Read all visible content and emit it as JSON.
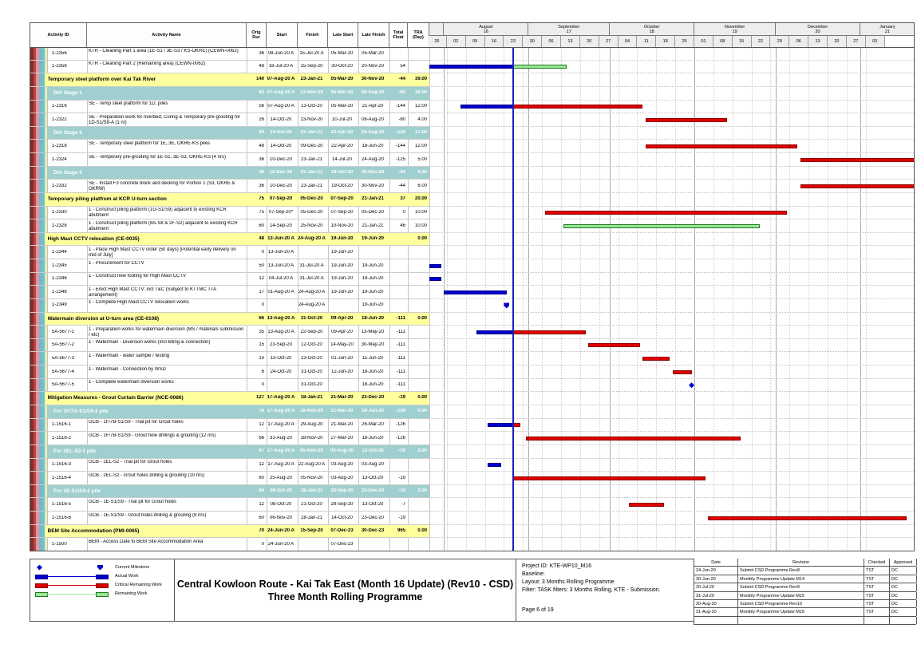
{
  "chart_data": {
    "type": "gantt",
    "columns_display": [
      "Activity ID",
      "Activity Name",
      "Orig\nDur",
      "Start",
      "Finish",
      "Late Start",
      "Late Finish",
      "Total\nFloat",
      "TRA\n(Day)"
    ],
    "timeline": {
      "start": "2020-07-26",
      "data_date": "2020-08-26",
      "weeks": [
        "26",
        "02",
        "09",
        "16",
        "23",
        "30",
        "06",
        "13",
        "20",
        "27",
        "04",
        "11",
        "18",
        "25",
        "01",
        "08",
        "15",
        "22",
        "29",
        "06",
        "13",
        "20",
        "27",
        "03"
      ],
      "months": [
        {
          "label": "",
          "num": "",
          "from": "2020-07-26",
          "to": "2020-08-01"
        },
        {
          "label": "August",
          "num": "16",
          "from": "2020-08-01",
          "to": "2020-09-01"
        },
        {
          "label": "September",
          "num": "17",
          "from": "2020-09-01",
          "to": "2020-10-01"
        },
        {
          "label": "October",
          "num": "18",
          "from": "2020-10-01",
          "to": "2020-11-01"
        },
        {
          "label": "November",
          "num": "19",
          "from": "2020-11-01",
          "to": "2020-12-01"
        },
        {
          "label": "December",
          "num": "20",
          "from": "2020-12-01",
          "to": "2021-01-01"
        },
        {
          "label": "January",
          "num": "21",
          "from": "2021-01-01",
          "to": "2021-01-24"
        }
      ]
    },
    "rows": [
      {
        "type": "act",
        "id": "1-2356",
        "name": "KTR - Cleaning Part 1 area (1E-S1 / 3E-S3 / KS-OKRE) (CEWN-0062)",
        "od": "36",
        "st": "08-Jun-20 A",
        "fn": "15-Jul-20 A",
        "ls": "05-Mar-20",
        "lf": "05-Mar-20",
        "tf": "",
        "tra": "",
        "bars": []
      },
      {
        "type": "act",
        "id": "1-2358",
        "name": "KTR - Cleaning Part 2 (Remaining area) (CEWN-0062)",
        "od": "48",
        "st": "16-Jul-20 A",
        "fn": "15-Sep-20",
        "ls": "30-Oct-20",
        "lf": "20-Nov-20",
        "tf": "54",
        "tra": "",
        "bars": [
          [
            "actual",
            "2020-07-26",
            "2020-08-26"
          ],
          [
            "remaining",
            "2020-08-26",
            "2020-09-15"
          ]
        ]
      },
      {
        "type": "band-y",
        "name": "Temporary steel platform over Kai Tak River",
        "od": "140",
        "st": "07-Aug-20 A",
        "fn": "23-Jan-21",
        "ls": "05-Mar-20",
        "lf": "30-Nov-20",
        "tf": "-44",
        "tra": "39.00"
      },
      {
        "type": "band-t",
        "name": "DIA Stage 1",
        "od": "82",
        "st": "07-Aug-20 A",
        "fn": "13-Nov-20",
        "ls": "05-Mar-20",
        "lf": "08-Aug-20",
        "tf": "-80",
        "tra": "16.00"
      },
      {
        "type": "act",
        "id": "1-2316",
        "name": "SE - Temp steel platform for 1D, piles",
        "od": "56",
        "st": "07-Aug-20 A",
        "fn": "13-Oct-20",
        "ls": "05-Mar-20",
        "lf": "21-Apr-20",
        "tf": "-144",
        "tra": "12.00",
        "bars": [
          [
            "actual",
            "2020-08-07",
            "2020-08-26"
          ],
          [
            "critical",
            "2020-08-26",
            "2020-10-13"
          ]
        ]
      },
      {
        "type": "act",
        "id": "1-2322",
        "name": "SE - Preparation work for riverbed; Coring & Temporary pre-grouting for 1D-S1/S9-A (1 nr)",
        "od": "26",
        "st": "14-Oct-20",
        "fn": "13-Nov-20",
        "ls": "10-Jul-20",
        "lf": "08-Aug-20",
        "tf": "-80",
        "tra": "4.00",
        "bars": [
          [
            "critical",
            "2020-10-14",
            "2020-11-13"
          ]
        ]
      },
      {
        "type": "band-t",
        "name": "DIA Stage 2",
        "od": "84",
        "st": "14-Oct-20",
        "fn": "23-Jan-21",
        "ls": "22-Apr-20",
        "lf": "24-Aug-20",
        "tf": "-125",
        "tra": "17.00"
      },
      {
        "type": "act",
        "id": "1-2318",
        "name": "SE - Temporary steel platform for 1E, 3E, OKRE-KS piles",
        "od": "48",
        "st": "14-Oct-20",
        "fn": "09-Dec-20",
        "ls": "22-Apr-20",
        "lf": "18-Jun-20",
        "tf": "-144",
        "tra": "12.00",
        "bars": [
          [
            "critical",
            "2020-10-14",
            "2020-12-09"
          ]
        ]
      },
      {
        "type": "act",
        "id": "1-2324",
        "name": "SE - Temporary pre-grouting for 1E-S1, 3E-S3, OKRE-KS (4 nrs)",
        "od": "36",
        "st": "10-Dec-20",
        "fn": "23-Jan-21",
        "ls": "14-Jul-20",
        "lf": "24-Aug-20",
        "tf": "-125",
        "tra": "5.00",
        "bars": [
          [
            "critical",
            "2020-12-10",
            "2021-01-23"
          ]
        ]
      },
      {
        "type": "band-t",
        "name": "DIA Stage 3",
        "od": "36",
        "st": "10-Dec-20",
        "fn": "23-Jan-21",
        "ls": "19-Oct-20",
        "lf": "30-Nov-20",
        "tf": "-44",
        "tra": "6.00"
      },
      {
        "type": "act",
        "id": "1-2332",
        "name": "SE - Install F3 concrete block and decking for Portion 1 (S3, OKRE & OKRW)",
        "od": "36",
        "st": "10-Dec-20",
        "fn": "23-Jan-21",
        "ls": "19-Oct-20",
        "lf": "30-Nov-20",
        "tf": "-44",
        "tra": "6.00",
        "bars": [
          [
            "critical",
            "2020-12-10",
            "2021-01-23"
          ]
        ]
      },
      {
        "type": "band-y",
        "name": "Temporary piling platfrom at KCR U-turn section",
        "od": "75",
        "st": "07-Sep-20",
        "fn": "05-Dec-20",
        "ls": "07-Sep-20",
        "lf": "21-Jan-21",
        "tf": "37",
        "tra": "20.00"
      },
      {
        "type": "act",
        "id": "1-2330",
        "name": "1 - Construct piling platform (1G-S1/S9) adjacent to existing KCR abutment",
        "od": "75",
        "st": "07-Sep-20*",
        "fn": "05-Dec-20",
        "ls": "07-Sep-20",
        "lf": "05-Dec-20",
        "tf": "0",
        "tra": "10.00",
        "bars": [
          [
            "critical",
            "2020-09-07",
            "2020-12-05"
          ]
        ]
      },
      {
        "type": "act",
        "id": "1-2328",
        "name": "1 - Construct piling platform (8A-S8 & 2F-S2) adjacent to existing KCR abutment",
        "od": "60",
        "st": "14-Sep-20",
        "fn": "25-Nov-20",
        "ls": "10-Nov-20",
        "lf": "21-Jan-21",
        "tf": "46",
        "tra": "10.00",
        "bars": [
          [
            "remaining",
            "2020-09-14",
            "2020-11-25"
          ]
        ]
      },
      {
        "type": "band-y",
        "name": "High Mast CCTV relocation (CE-0035)",
        "od": "48",
        "st": "13-Jun-20 A",
        "fn": "24-Aug-20 A",
        "ls": "19-Jun-20",
        "lf": "19-Jun-20",
        "tf": "",
        "tra": "0.00"
      },
      {
        "type": "act",
        "id": "1-2344",
        "name": "1 - Place High Mast CCTV order (50 days) [Potential early delivery on mid of July]",
        "od": "0",
        "st": "13-Jun-20 A",
        "fn": "",
        "ls": "19-Jun-20",
        "lf": "",
        "tf": "",
        "tra": "",
        "bars": []
      },
      {
        "type": "act",
        "id": "1-2345",
        "name": "1 - Procurement for CCTV",
        "od": "50",
        "st": "13-Jun-20 A",
        "fn": "31-Jul-20 A",
        "ls": "19-Jun-20",
        "lf": "19-Jun-20",
        "tf": "",
        "tra": "",
        "bars": [
          [
            "actual",
            "2020-07-26",
            "2020-07-31"
          ]
        ]
      },
      {
        "type": "act",
        "id": "1-2346",
        "name": "1 - Construct new footing for High Mast CCTV",
        "od": "12",
        "st": "04-Jul-20 A",
        "fn": "31-Jul-20 A",
        "ls": "19-Jun-20",
        "lf": "19-Jun-20",
        "tf": "",
        "tra": "",
        "bars": [
          [
            "actual",
            "2020-07-26",
            "2020-07-31"
          ]
        ]
      },
      {
        "type": "act",
        "id": "1-2348",
        "name": "1 - Erect High Mast CCTV; incl T&C (Subject to KTTMC TTA arrangement)",
        "od": "17",
        "st": "01-Aug-20 A",
        "fn": "24-Aug-20 A",
        "ls": "19-Jun-20",
        "lf": "19-Jun-20",
        "tf": "",
        "tra": "",
        "bars": [
          [
            "actual",
            "2020-08-01",
            "2020-08-24"
          ]
        ]
      },
      {
        "type": "act",
        "id": "1-2349",
        "name": "1 - Complete High Mast CCTV relocation works",
        "od": "0",
        "st": "",
        "fn": "24-Aug-20 A",
        "ls": "",
        "lf": "19-Jun-20",
        "tf": "",
        "tra": "",
        "bars": [],
        "ms": [
          [
            "flag",
            "2020-08-24"
          ]
        ]
      },
      {
        "type": "band-y",
        "name": "Watermain diversion at U-turn area (CE-0108)",
        "od": "66",
        "st": "13-Aug-20 A",
        "fn": "31-Oct-20",
        "ls": "09-Apr-20",
        "lf": "18-Jun-20",
        "tf": "-111",
        "tra": "0.00"
      },
      {
        "type": "act",
        "id": "5A-5677-1",
        "name": "1 - Preparation works for watermain diversion (MS / materials submission / etc)",
        "od": "35",
        "st": "13-Aug-20 A",
        "fn": "22-Sep-20",
        "ls": "09-Apr-20",
        "lf": "13-May-20",
        "tf": "-111",
        "tra": "",
        "bars": [
          [
            "actual",
            "2020-08-13",
            "2020-08-26"
          ],
          [
            "critical",
            "2020-08-26",
            "2020-09-22"
          ]
        ]
      },
      {
        "type": "act",
        "id": "5A-5677-2",
        "name": "1 - Watermain - Diversion works (incl teting & connection)",
        "od": "15",
        "st": "23-Sep-20",
        "fn": "12-Oct-20",
        "ls": "14-May-20",
        "lf": "30-May-20",
        "tf": "-111",
        "tra": "",
        "bars": [
          [
            "critical",
            "2020-09-23",
            "2020-10-12"
          ]
        ]
      },
      {
        "type": "act",
        "id": "5A-5677-3",
        "name": "1 - Watermain - water sample / testing",
        "od": "10",
        "st": "13-Oct-20",
        "fn": "23-Oct-20",
        "ls": "01-Jun-20",
        "lf": "11-Jun-20",
        "tf": "-111",
        "tra": "",
        "bars": [
          [
            "critical",
            "2020-10-13",
            "2020-10-23"
          ]
        ]
      },
      {
        "type": "act",
        "id": "5A-5677-4",
        "name": "1 - Watermain - Connection by WSD",
        "od": "6",
        "st": "24-Oct-20",
        "fn": "31-Oct-20",
        "ls": "12-Jun-20",
        "lf": "18-Jun-20",
        "tf": "-111",
        "tra": "",
        "bars": [
          [
            "critical",
            "2020-10-24",
            "2020-10-31"
          ]
        ]
      },
      {
        "type": "act",
        "id": "5A-5677-5",
        "name": "1 - Complete watermain diversion works",
        "od": "0",
        "st": "",
        "fn": "31-Oct-20",
        "ls": "",
        "lf": "18-Jun-20",
        "tf": "-111",
        "tra": "",
        "bars": [],
        "ms": [
          [
            "diamond",
            "2020-10-31"
          ]
        ]
      },
      {
        "type": "band-y",
        "name": "Mitigation Measures - Grout Curtain Barrier (NCE-0086)",
        "od": "127",
        "st": "17-Aug-20 A",
        "fn": "18-Jan-21",
        "ls": "21-Mar-20",
        "lf": "23-Dec-20",
        "tf": "-19",
        "tra": "0.00"
      },
      {
        "type": "band-t",
        "name": "For 1F/7A-S1/S9-2 pile",
        "od": "78",
        "st": "17-Aug-20 A",
        "fn": "18-Nov-20",
        "ls": "21-Mar-20",
        "lf": "18-Jun-20",
        "tf": "-126",
        "tra": "0.00"
      },
      {
        "type": "act",
        "id": "1-1516-1",
        "name": "GCB - 1F/7B-S1/S9 - Trial pit for Grout holes",
        "od": "12",
        "st": "17-Aug-20 A",
        "fn": "29-Aug-20",
        "ls": "21-Mar-20",
        "lf": "26-Mar-20",
        "tf": "-126",
        "tra": "",
        "bars": [
          [
            "actual",
            "2020-08-17",
            "2020-08-26"
          ],
          [
            "critical",
            "2020-08-26",
            "2020-08-29"
          ]
        ]
      },
      {
        "type": "act",
        "id": "1-1516-2",
        "name": "GCB - 1F/7B-S1/S9 - Grout hole drillings & grouting (12 nrs)",
        "od": "66",
        "st": "31-Aug-20",
        "fn": "18-Nov-20",
        "ls": "27-Mar-20",
        "lf": "18-Jun-20",
        "tf": "-126",
        "tra": "",
        "bars": [
          [
            "critical",
            "2020-08-31",
            "2020-11-18"
          ]
        ]
      },
      {
        "type": "band-t",
        "name": "For 2EL-S2-1 pile",
        "od": "67",
        "st": "17-Aug-20 A",
        "fn": "05-Nov-20",
        "ls": "03-Aug-20",
        "lf": "13-Oct-20",
        "tf": "-19",
        "tra": "0.00"
      },
      {
        "type": "act",
        "id": "1-1516-3",
        "name": "GCB - 2EL-S2 - Trial pit for Grout holes",
        "od": "12",
        "st": "17-Aug-20 A",
        "fn": "22-Aug-20 A",
        "ls": "03-Aug-20",
        "lf": "03-Aug-20",
        "tf": "",
        "tra": "",
        "bars": [
          [
            "actual",
            "2020-08-17",
            "2020-08-22"
          ]
        ]
      },
      {
        "type": "act",
        "id": "1-1516-4",
        "name": "GCB - 2EL-S2 - Grout holes drilling & grouting (10 nrs)",
        "od": "60",
        "st": "25-Aug-20",
        "fn": "05-Nov-20",
        "ls": "03-Aug-20",
        "lf": "13-Oct-20",
        "tf": "-19",
        "tra": "",
        "bars": [
          [
            "critical",
            "2020-08-26",
            "2020-11-05"
          ]
        ]
      },
      {
        "type": "band-t",
        "name": "For 1E-S1/S9-2 pile",
        "od": "84",
        "st": "08-Oct-20",
        "fn": "18-Jan-21",
        "ls": "28-Sep-20",
        "lf": "23-Dec-20",
        "tf": "-19",
        "tra": "0.00"
      },
      {
        "type": "act",
        "id": "1-1516-5",
        "name": "GCB - 1E-S1/S9 - Trial pit for Grout holes",
        "od": "12",
        "st": "08-Oct-20",
        "fn": "21-Oct-20",
        "ls": "28-Sep-20",
        "lf": "13-Oct-20",
        "tf": "-7",
        "tra": "",
        "bars": [
          [
            "critical",
            "2020-10-08",
            "2020-10-21"
          ]
        ]
      },
      {
        "type": "act",
        "id": "1-1516-6",
        "name": "GCB - 1E-S1/S9 - Grout holes drilling & grouting (8 nrs)",
        "od": "60",
        "st": "06-Nov-20",
        "fn": "18-Jan-21",
        "ls": "14-Oct-20",
        "lf": "23-Dec-20",
        "tf": "-19",
        "tra": "",
        "bars": [
          [
            "critical",
            "2020-11-06",
            "2021-01-18"
          ]
        ]
      },
      {
        "type": "band-y",
        "name": "BEM Site Accommodation (PMI-0065)",
        "od": "70",
        "st": "24-Jun-20 A",
        "fn": "15-Sep-20",
        "ls": "07-Dec-23",
        "lf": "30-Dec-23",
        "tf": "965",
        "tra": "0.00"
      },
      {
        "type": "act",
        "id": "1-1500",
        "name": "BEM - Access Date to BEM Site Accommodation Area",
        "od": "0",
        "st": "24-Jun-20 A",
        "fn": "",
        "ls": "07-Dec-23",
        "lf": "",
        "tf": "",
        "tra": "",
        "bars": []
      }
    ]
  },
  "legend": [
    {
      "key": "milestone",
      "label": "Current Milestone"
    },
    {
      "key": "actual",
      "label": "Actual Work"
    },
    {
      "key": "critical",
      "label": "Critical Remaining Work"
    },
    {
      "key": "remaining",
      "label": "Remaining Work"
    }
  ],
  "title": {
    "line1": "Central Kowloon Route - Kai Tak East (Month 16 Update) (Rev10 - CSD)",
    "line2": "Three Month Rolling Programme"
  },
  "info_lines": [
    "Project ID: KTE-WP10_M16",
    "Baseline:",
    "Layout: 3 Months Rolling Programme",
    "Filter: TASK filters: 3 Months Rolling, KTE - Submission."
  ],
  "page_label": "Page 6 of 19",
  "revisions": {
    "headers": [
      "Date",
      "Revision",
      "Checked",
      "Approved"
    ],
    "rows": [
      [
        "24-Jun-20",
        "Submit CSD Programme Rev8",
        "TST",
        "DC"
      ],
      [
        "30-Jun-20",
        "Monthly Programme Update M14",
        "TST",
        "DC"
      ],
      [
        "20-Jul-20",
        "Submit CSD Programme Rev9",
        "TST",
        "DC"
      ],
      [
        "31-Jul-20",
        "Monthly Programme Update M15",
        "TST",
        "DC"
      ],
      [
        "20-Aug-20",
        "Submit CSD Programme Rev10",
        "TST",
        "DC"
      ],
      [
        "31-Aug-20",
        "Monthly Programme Update M16",
        "TST",
        "DC"
      ],
      [
        "",
        "",
        "",
        ""
      ]
    ]
  },
  "colors": {
    "actual": "#0000CD",
    "actual_border": "#00008B",
    "critical": "#E00000",
    "critical_border": "#8B0000",
    "remaining": "#98E698",
    "remaining_border": "#1E7A1E",
    "band_yellow": "#FFFF9E",
    "band_teal": "#9FCFCF",
    "data_date_line": "#2020C0",
    "stripes": [
      "#7E3030",
      "#C24040",
      "#E09898",
      "#84AFD6",
      "#66C6C6",
      "#EEE8B8"
    ]
  }
}
